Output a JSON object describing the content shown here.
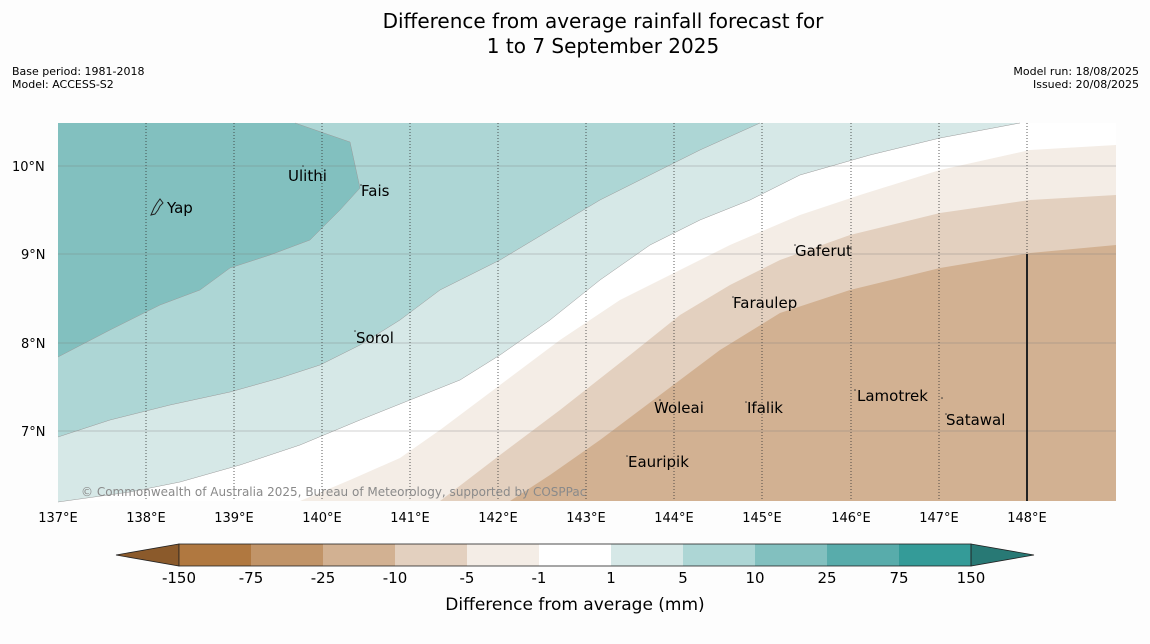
{
  "header": {
    "title_line1": "Difference from average rainfall forecast for",
    "title_line2": "1 to 7 September 2025",
    "base_period": "Base period: 1981-2018",
    "model": "Model: ACCESS-S2",
    "model_run": "Model run: 18/08/2025",
    "issued": "Issued: 20/08/2025"
  },
  "map": {
    "copyright": "© Commonwealth of Australia 2025, Bureau of Meteorology, supported by COSPPac",
    "lat_labels": [
      "10°N",
      "9°N",
      "8°N",
      "7°N"
    ],
    "lon_labels": [
      "137°E",
      "138°E",
      "139°E",
      "140°E",
      "141°E",
      "142°E",
      "143°E",
      "144°E",
      "145°E",
      "146°E",
      "147°E",
      "148°E"
    ],
    "places": [
      "Ulithi",
      "Fais",
      "Yap",
      "Gaferut",
      "Faraulep",
      "Sorol",
      "Lamotrek",
      "Woleai",
      "Ifalik",
      "Satawal",
      "Eauripik"
    ]
  },
  "legend": {
    "title": "Difference from average (mm)",
    "tick_labels": [
      "-150",
      "-75",
      "-25",
      "-10",
      "-5",
      "-1",
      "1",
      "5",
      "10",
      "25",
      "75",
      "150"
    ],
    "colors": [
      "#8b5a2b",
      "#b07840",
      "#c19468",
      "#d2b192",
      "#e3d0bf",
      "#f4ede6",
      "#ffffff",
      "#d6e8e7",
      "#add6d5",
      "#82c0bf",
      "#58acab",
      "#349b98",
      "#287975"
    ]
  }
}
